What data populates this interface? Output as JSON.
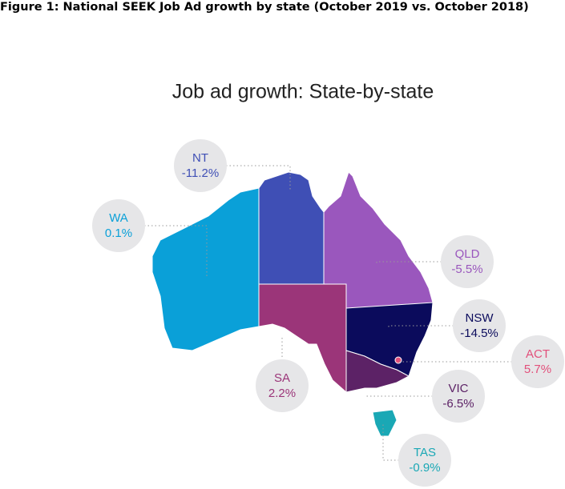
{
  "chart_data": {
    "type": "map",
    "caption": "Figure 1: National SEEK Job Ad growth by state (October 2019 vs. October 2018)",
    "title": "Job ad growth: State-by-state",
    "categories": [
      "WA",
      "NT",
      "SA",
      "QLD",
      "NSW",
      "ACT",
      "VIC",
      "TAS"
    ],
    "values": [
      0.1,
      -11.2,
      2.2,
      -5.5,
      -14.5,
      5.7,
      -6.5,
      -0.9
    ],
    "value_labels": [
      "0.1%",
      "-11.2%",
      "2.2%",
      "-5.5%",
      "-14.5%",
      "5.7%",
      "-6.5%",
      "-0.9%"
    ],
    "colors": [
      "#0aa0d8",
      "#3f4fb5",
      "#9b3579",
      "#9a57bd",
      "#0b0b5c",
      "#e2507b",
      "#5c2266",
      "#1aa8b5"
    ]
  }
}
